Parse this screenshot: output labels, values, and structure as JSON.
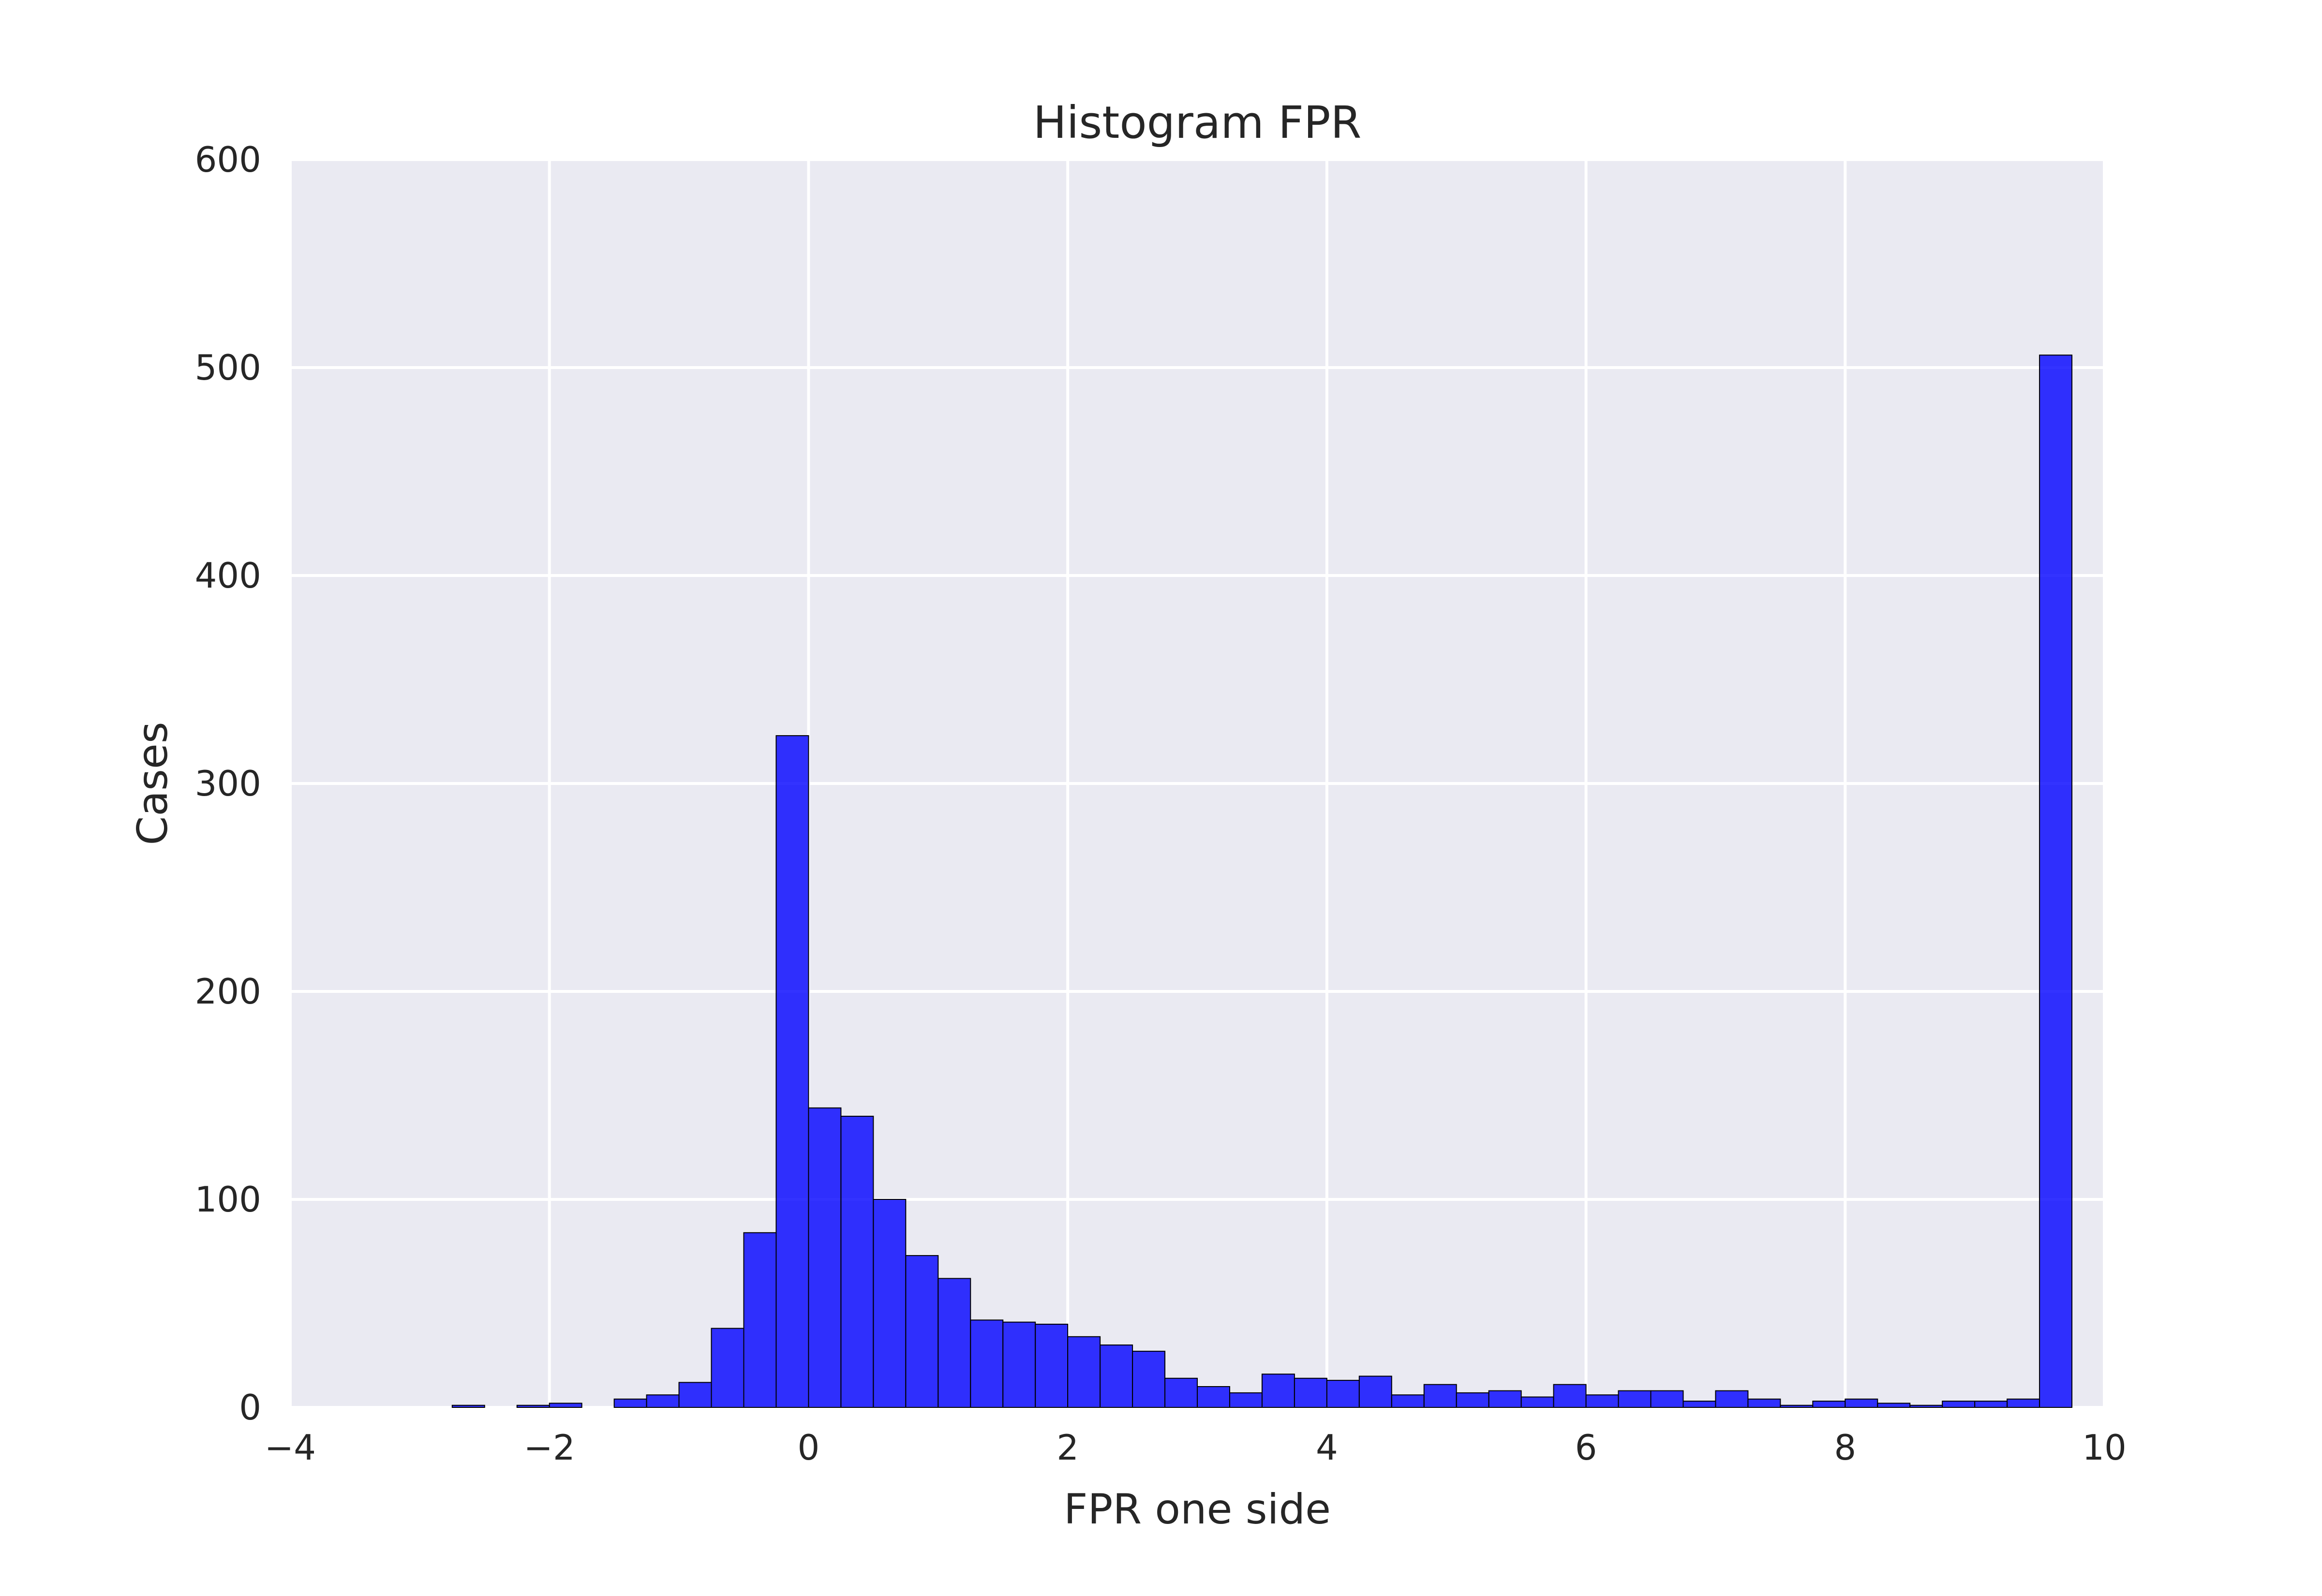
{
  "chart_data": {
    "type": "bar",
    "title": "Histogram FPR",
    "xlabel": "FPR one side",
    "ylabel": "Cases",
    "xlim": [
      -4,
      10
    ],
    "ylim": [
      0,
      600
    ],
    "xticks": [
      -4,
      -2,
      0,
      2,
      4,
      6,
      8,
      10
    ],
    "yticks": [
      0,
      100,
      200,
      300,
      400,
      500,
      600
    ],
    "xtick_labels": [
      "−4",
      "−2",
      "0",
      "2",
      "4",
      "6",
      "8",
      "10"
    ],
    "ytick_labels": [
      "0",
      "100",
      "200",
      "300",
      "400",
      "500",
      "600"
    ],
    "grid": true,
    "bin_edges": [
      -3.0,
      -2.75,
      -2.5,
      -2.25,
      -2.0,
      -1.75,
      -1.5,
      -1.25,
      -1.0,
      -0.75,
      -0.5,
      -0.25,
      0.0,
      0.25,
      0.5,
      0.75,
      1.0,
      1.25,
      1.5,
      1.75,
      2.0,
      2.25,
      2.5,
      2.75,
      3.0,
      3.25,
      3.5,
      3.75,
      4.0,
      4.25,
      4.5,
      4.75,
      5.0,
      5.25,
      5.5,
      5.75,
      6.0,
      6.25,
      6.5,
      6.75,
      7.0,
      7.25,
      7.5,
      7.75,
      8.0,
      8.25,
      8.5,
      8.75,
      9.0,
      9.25,
      9.5,
      9.75,
      10.0
    ],
    "values": [
      0,
      1,
      0,
      1,
      2,
      0,
      4,
      6,
      12,
      38,
      84,
      323,
      144,
      140,
      100,
      73,
      62,
      42,
      41,
      40,
      34,
      30,
      27,
      14,
      10,
      7,
      16,
      14,
      13,
      15,
      6,
      11,
      7,
      8,
      5,
      11,
      6,
      8,
      8,
      3,
      8,
      4,
      1,
      3,
      4,
      2,
      1,
      3,
      3,
      4,
      506,
      0
    ],
    "colors": {
      "bar": "#0000ff",
      "bar_edge": "#000000",
      "plot_background": "#eaeaf2",
      "grid": "#ffffff"
    }
  }
}
